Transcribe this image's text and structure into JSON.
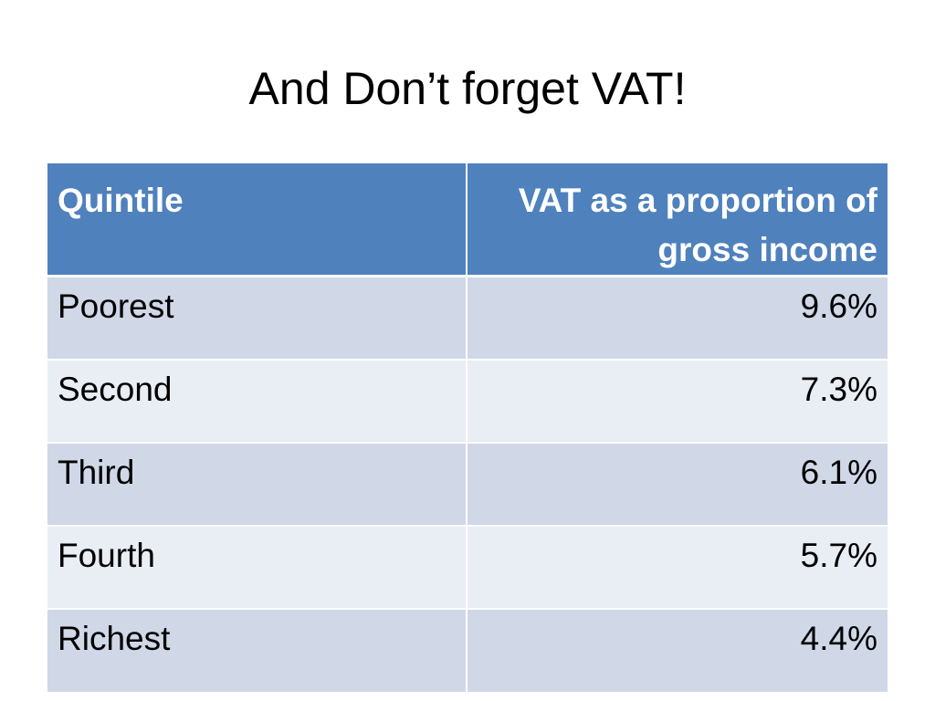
{
  "slide": {
    "title": "And Don’t forget VAT!"
  },
  "table": {
    "headers": [
      "Quintile",
      "VAT as a proportion of gross income"
    ],
    "rows": [
      [
        "Poorest",
        "9.6%"
      ],
      [
        "Second",
        "7.3%"
      ],
      [
        "Third",
        "6.1%"
      ],
      [
        "Fourth",
        "5.7%"
      ],
      [
        "Richest",
        "4.4%"
      ]
    ],
    "colors": {
      "header_bg": "#4f81bd",
      "header_text": "#ffffff",
      "row_odd_bg": "#d0d8e8",
      "row_even_bg": "#e9edf4"
    }
  }
}
